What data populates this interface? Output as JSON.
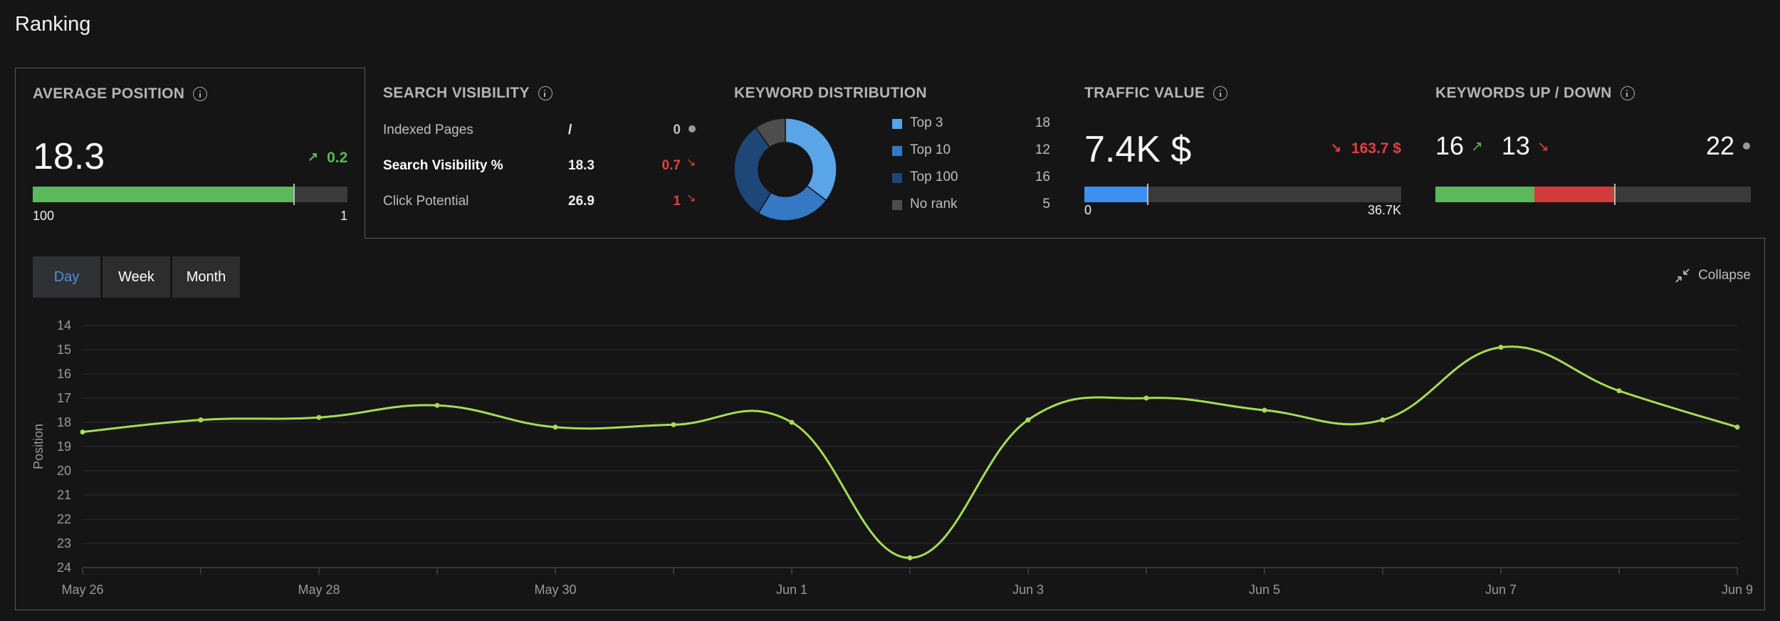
{
  "page_title": "Ranking",
  "avg_position": {
    "title": "AVERAGE POSITION",
    "value": "18.3",
    "delta": "0.2",
    "delta_arrow": "↗",
    "fill_fraction": 0.83,
    "range_min": "100",
    "range_max": "1"
  },
  "search_visibility": {
    "title": "SEARCH VISIBILITY",
    "rows": [
      {
        "label": "Indexed Pages",
        "value": "/",
        "delta": "0",
        "arrow": ""
      },
      {
        "label": "Search Visibility %",
        "value": "18.3",
        "delta": "0.7",
        "arrow": "↘"
      },
      {
        "label": "Click Potential",
        "value": "26.9",
        "delta": "1",
        "arrow": "↘"
      }
    ]
  },
  "keyword_distribution": {
    "title": "KEYWORD DISTRIBUTION",
    "items": [
      {
        "label": "Top 3",
        "value": "18",
        "count": 18,
        "color": "#5aa4e8"
      },
      {
        "label": "Top 10",
        "value": "12",
        "count": 12,
        "color": "#3578c4"
      },
      {
        "label": "Top 100",
        "value": "16",
        "count": 16,
        "color": "#1e4677"
      },
      {
        "label": "No rank",
        "value": "5",
        "count": 5,
        "color": "#4d4d4d"
      }
    ]
  },
  "traffic_value": {
    "title": "TRAFFIC VALUE",
    "value": "7.4K $",
    "delta": "163.7 $",
    "delta_arrow": "↘",
    "fill_fraction": 0.2,
    "range_min": "0",
    "range_max": "36.7K",
    "color": "#3d8ff0"
  },
  "keywords_updown": {
    "title": "KEYWORDS UP / DOWN",
    "up": "16",
    "up_arrow": "↗",
    "down": "13",
    "down_arrow": "↘",
    "neutral": "22",
    "counts": {
      "up": 16,
      "down": 13,
      "neutral": 22
    }
  },
  "controls": {
    "periods": [
      "Day",
      "Week",
      "Month"
    ],
    "active_period": "Day",
    "collapse_label": "Collapse"
  },
  "colors": {
    "line": "#a6dc55",
    "up": "#5cb85c",
    "down": "#d23b3b",
    "neutral": "#3a3a3a"
  },
  "chart_data": {
    "type": "line",
    "title": "",
    "xlabel": "",
    "ylabel": "Position",
    "ylim": [
      14,
      24
    ],
    "y_inverted": true,
    "yticks": [
      "14",
      "15",
      "16",
      "17",
      "18",
      "19",
      "20",
      "21",
      "22",
      "23",
      "24"
    ],
    "x_tick_labels": [
      "May 26",
      "May 28",
      "May 30",
      "Jun 1",
      "Jun 3",
      "Jun 5",
      "Jun 7",
      "Jun 9"
    ],
    "x": [
      "May 26",
      "May 27",
      "May 28",
      "May 29",
      "May 30",
      "May 31",
      "Jun 1",
      "Jun 2",
      "Jun 3",
      "Jun 4",
      "Jun 5",
      "Jun 6",
      "Jun 7",
      "Jun 8",
      "Jun 9"
    ],
    "series": [
      {
        "name": "Position",
        "values": [
          18.4,
          17.9,
          17.8,
          17.3,
          18.2,
          18.1,
          18.0,
          23.6,
          17.9,
          17.0,
          17.5,
          17.9,
          14.9,
          16.7,
          18.2
        ]
      }
    ]
  }
}
